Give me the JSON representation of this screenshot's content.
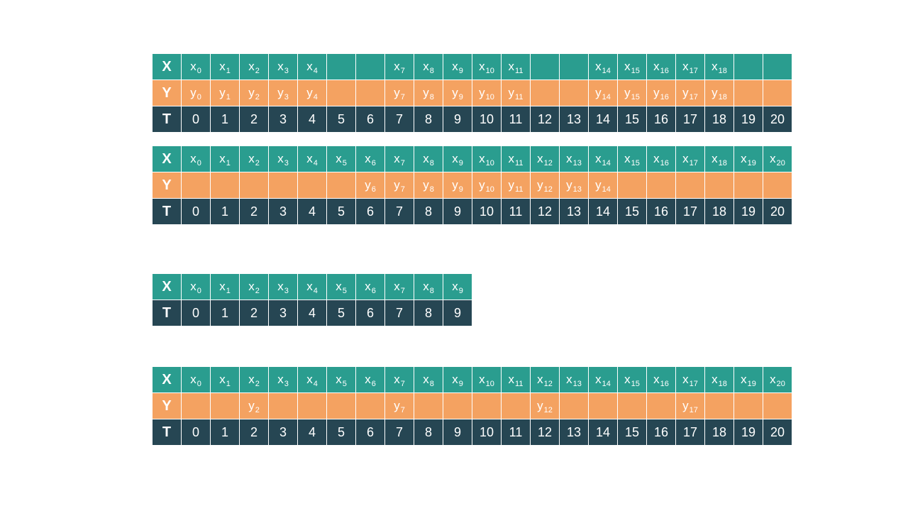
{
  "row_labels": {
    "x": "X",
    "y": "Y",
    "t": "T"
  },
  "tables": [
    {
      "x": [
        [
          "x",
          "0"
        ],
        [
          "x",
          "1"
        ],
        [
          "x",
          "2"
        ],
        [
          "x",
          "3"
        ],
        [
          "x",
          "4"
        ],
        null,
        null,
        [
          "x",
          "7"
        ],
        [
          "x",
          "8"
        ],
        [
          "x",
          "9"
        ],
        [
          "x",
          "10"
        ],
        [
          "x",
          "11"
        ],
        null,
        null,
        [
          "x",
          "14"
        ],
        [
          "x",
          "15"
        ],
        [
          "x",
          "16"
        ],
        [
          "x",
          "17"
        ],
        [
          "x",
          "18"
        ],
        null,
        null
      ],
      "y": [
        [
          "y",
          "0"
        ],
        [
          "y",
          "1"
        ],
        [
          "y",
          "2"
        ],
        [
          "y",
          "3"
        ],
        [
          "y",
          "4"
        ],
        null,
        null,
        [
          "y",
          "7"
        ],
        [
          "y",
          "8"
        ],
        [
          "y",
          "9"
        ],
        [
          "y",
          "10"
        ],
        [
          "y",
          "11"
        ],
        null,
        null,
        [
          "y",
          "14"
        ],
        [
          "y",
          "15"
        ],
        [
          "y",
          "16"
        ],
        [
          "y",
          "17"
        ],
        [
          "y",
          "18"
        ],
        null,
        null
      ],
      "t": [
        "0",
        "1",
        "2",
        "3",
        "4",
        "5",
        "6",
        "7",
        "8",
        "9",
        "10",
        "11",
        "12",
        "13",
        "14",
        "15",
        "16",
        "17",
        "18",
        "19",
        "20"
      ]
    },
    {
      "x": [
        [
          "x",
          "0"
        ],
        [
          "x",
          "1"
        ],
        [
          "x",
          "2"
        ],
        [
          "x",
          "3"
        ],
        [
          "x",
          "4"
        ],
        [
          "x",
          "5"
        ],
        [
          "x",
          "6"
        ],
        [
          "x",
          "7"
        ],
        [
          "x",
          "8"
        ],
        [
          "x",
          "9"
        ],
        [
          "x",
          "10"
        ],
        [
          "x",
          "11"
        ],
        [
          "x",
          "12"
        ],
        [
          "x",
          "13"
        ],
        [
          "x",
          "14"
        ],
        [
          "x",
          "15"
        ],
        [
          "x",
          "16"
        ],
        [
          "x",
          "17"
        ],
        [
          "x",
          "18"
        ],
        [
          "x",
          "19"
        ],
        [
          "x",
          "20"
        ]
      ],
      "y": [
        null,
        null,
        null,
        null,
        null,
        null,
        [
          "y",
          "6"
        ],
        [
          "y",
          "7"
        ],
        [
          "y",
          "8"
        ],
        [
          "y",
          "9"
        ],
        [
          "y",
          "10"
        ],
        [
          "y",
          "11"
        ],
        [
          "y",
          "12"
        ],
        [
          "y",
          "13"
        ],
        [
          "y",
          "14"
        ],
        null,
        null,
        null,
        null,
        null,
        null
      ],
      "t": [
        "0",
        "1",
        "2",
        "3",
        "4",
        "5",
        "6",
        "7",
        "8",
        "9",
        "10",
        "11",
        "12",
        "13",
        "14",
        "15",
        "16",
        "17",
        "18",
        "19",
        "20"
      ]
    },
    {
      "x": [
        [
          "x",
          "0"
        ],
        [
          "x",
          "1"
        ],
        [
          "x",
          "2"
        ],
        [
          "x",
          "3"
        ],
        [
          "x",
          "4"
        ],
        [
          "x",
          "5"
        ],
        [
          "x",
          "6"
        ],
        [
          "x",
          "7"
        ],
        [
          "x",
          "8"
        ],
        [
          "x",
          "9"
        ]
      ],
      "y": null,
      "t": [
        "0",
        "1",
        "2",
        "3",
        "4",
        "5",
        "6",
        "7",
        "8",
        "9"
      ]
    },
    {
      "x": [
        [
          "x",
          "0"
        ],
        [
          "x",
          "1"
        ],
        [
          "x",
          "2"
        ],
        [
          "x",
          "3"
        ],
        [
          "x",
          "4"
        ],
        [
          "x",
          "5"
        ],
        [
          "x",
          "6"
        ],
        [
          "x",
          "7"
        ],
        [
          "x",
          "8"
        ],
        [
          "x",
          "9"
        ],
        [
          "x",
          "10"
        ],
        [
          "x",
          "11"
        ],
        [
          "x",
          "12"
        ],
        [
          "x",
          "13"
        ],
        [
          "x",
          "14"
        ],
        [
          "x",
          "15"
        ],
        [
          "x",
          "16"
        ],
        [
          "x",
          "17"
        ],
        [
          "x",
          "18"
        ],
        [
          "x",
          "19"
        ],
        [
          "x",
          "20"
        ]
      ],
      "y": [
        null,
        null,
        [
          "y",
          "2"
        ],
        null,
        null,
        null,
        null,
        [
          "y",
          "7"
        ],
        null,
        null,
        null,
        null,
        [
          "y",
          "12"
        ],
        null,
        null,
        null,
        null,
        [
          "y",
          "17"
        ],
        null,
        null,
        null
      ],
      "t": [
        "0",
        "1",
        "2",
        "3",
        "4",
        "5",
        "6",
        "7",
        "8",
        "9",
        "10",
        "11",
        "12",
        "13",
        "14",
        "15",
        "16",
        "17",
        "18",
        "19",
        "20"
      ]
    }
  ],
  "colors": {
    "x_row": "#2a9d8f",
    "y_row": "#f4a261",
    "t_row": "#264653",
    "text": "#ffffff"
  }
}
